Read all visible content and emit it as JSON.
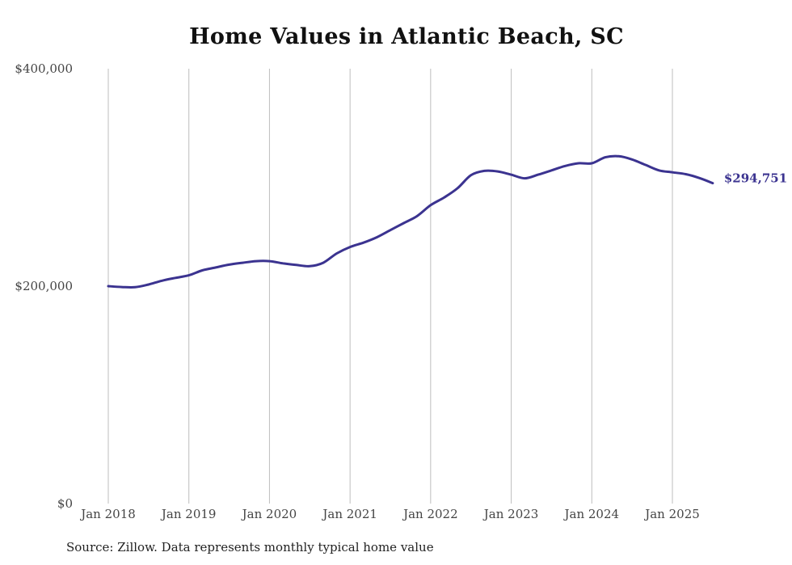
{
  "source": "Source: Zillow. Data represents monthly typical home value",
  "chart_data": {
    "type": "line",
    "title": "Home Values in Atlantic Beach, SC",
    "xlabel": "",
    "ylabel": "",
    "ylim": [
      0,
      400000
    ],
    "yticks": [
      "$0",
      "$200,000",
      "$400,000"
    ],
    "xticks": [
      "Jan 2018",
      "Jan 2019",
      "Jan 2020",
      "Jan 2021",
      "Jan 2022",
      "Jan 2023",
      "Jan 2024",
      "Jan 2025"
    ],
    "grid": "vertical",
    "colors": {
      "line": "#3b3390",
      "grid": "#bdbdbd",
      "text": "#444444"
    },
    "end_label": "$294,751",
    "series": [
      {
        "points": [
          [
            "2018-01",
            200000
          ],
          [
            "2018-03",
            199200
          ],
          [
            "2018-05",
            199000
          ],
          [
            "2018-07",
            201500
          ],
          [
            "2018-09",
            205000
          ],
          [
            "2018-11",
            207600
          ],
          [
            "2019-01",
            210000
          ],
          [
            "2019-03",
            214500
          ],
          [
            "2019-05",
            217200
          ],
          [
            "2019-07",
            219800
          ],
          [
            "2019-09",
            221500
          ],
          [
            "2019-11",
            223000
          ],
          [
            "2020-01",
            223000
          ],
          [
            "2020-03",
            221000
          ],
          [
            "2020-05",
            219500
          ],
          [
            "2020-07",
            218400
          ],
          [
            "2020-09",
            221500
          ],
          [
            "2020-11",
            230000
          ],
          [
            "2021-01",
            236000
          ],
          [
            "2021-03",
            240000
          ],
          [
            "2021-05",
            245000
          ],
          [
            "2021-07",
            251500
          ],
          [
            "2021-09",
            258000
          ],
          [
            "2021-11",
            264500
          ],
          [
            "2022-01",
            274500
          ],
          [
            "2022-03",
            281500
          ],
          [
            "2022-05",
            290000
          ],
          [
            "2022-07",
            302000
          ],
          [
            "2022-09",
            306000
          ],
          [
            "2022-11",
            305500
          ],
          [
            "2023-01",
            302500
          ],
          [
            "2023-03",
            299200
          ],
          [
            "2023-05",
            302500
          ],
          [
            "2023-07",
            306500
          ],
          [
            "2023-09",
            310500
          ],
          [
            "2023-11",
            313000
          ],
          [
            "2024-01",
            313000
          ],
          [
            "2024-03",
            318500
          ],
          [
            "2024-05",
            319500
          ],
          [
            "2024-07",
            316500
          ],
          [
            "2024-09",
            311500
          ],
          [
            "2024-11",
            306500
          ],
          [
            "2025-01",
            304700
          ],
          [
            "2025-03",
            303000
          ],
          [
            "2025-05",
            299500
          ],
          [
            "2025-07",
            294751
          ]
        ]
      }
    ]
  }
}
